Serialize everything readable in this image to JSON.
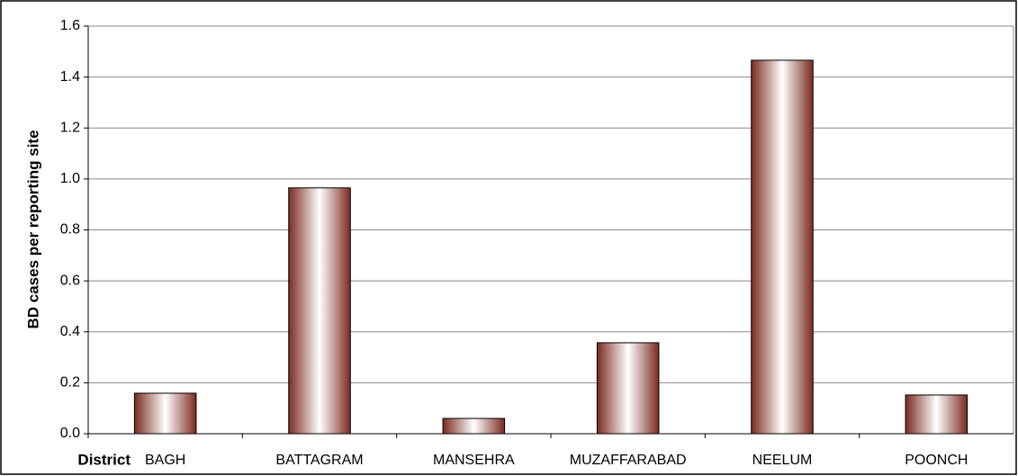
{
  "chart_data": {
    "type": "bar",
    "y_axis_label": "BD cases per reporting site",
    "x_axis_label": "District",
    "categories": [
      "BAGH",
      "BATTAGRAM",
      "MANSEHRA",
      "MUZAFFARABAD",
      "NEELUM",
      "POONCH"
    ],
    "values": [
      0.159,
      0.965,
      0.06,
      0.357,
      1.466,
      0.152
    ],
    "color": "#7a2a20",
    "ylim": [
      0,
      1.6
    ],
    "yticks": [
      {
        "value": 0,
        "label": "0.0"
      },
      0.2,
      0.4,
      0.6,
      0.8,
      {
        "value": 1,
        "label": "1.0"
      },
      1.2,
      1.4,
      1.6
    ],
    "grid": true
  }
}
